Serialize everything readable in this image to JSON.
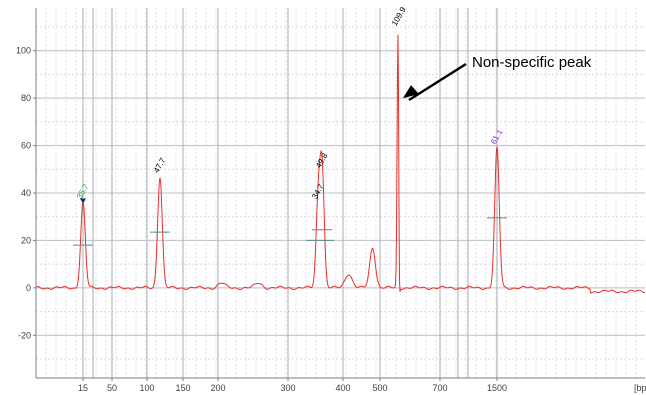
{
  "chart_data": {
    "type": "line",
    "title": "",
    "xlabel": "[bp]",
    "ylabel": "",
    "ylim": [
      -38,
      118
    ],
    "y_ticks": [
      -20,
      0,
      20,
      40,
      60,
      80,
      100
    ],
    "x_tick_labels": [
      "15",
      "50",
      "100",
      "150",
      "200",
      "300",
      "400",
      "500",
      "700",
      "1500"
    ],
    "grid": true,
    "x_marker_positions_bp": [
      15,
      50,
      100,
      150,
      200,
      300,
      400,
      500,
      700,
      1500
    ],
    "series": [
      {
        "color": "#e8302a",
        "peaks": [
          {
            "label": "35.7",
            "label_color": "#2ca02c",
            "size_bp": 15,
            "height": 36,
            "marker": "triangle"
          },
          {
            "label": "47.7",
            "label_color": "#000000",
            "size_bp": 118,
            "height": 47
          },
          {
            "label": "34.7",
            "label_color": "#000000",
            "size_bp": 355,
            "height": 36
          },
          {
            "label": "49.8",
            "label_color": "#000000",
            "size_bp": 362,
            "height": 49
          },
          {
            "label": "109.9",
            "label_color": "#000000",
            "size_bp": 560,
            "height": 109
          },
          {
            "label": "61.1",
            "label_color": "#8a2be2",
            "size_bp": 1500,
            "height": 59
          }
        ],
        "minor_features": [
          {
            "size_bp": 205,
            "height": 2
          },
          {
            "size_bp": 258,
            "height": 2
          },
          {
            "size_bp": 415,
            "height": 6
          },
          {
            "size_bp": 480,
            "height": 17
          }
        ]
      }
    ],
    "annotations": [
      {
        "text": "Non-specific peak",
        "points_to_peak_bp": 560
      }
    ]
  }
}
